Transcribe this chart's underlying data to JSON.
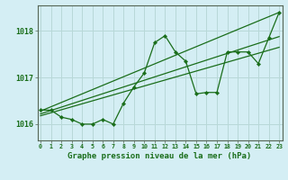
{
  "background_color": "#d4eef4",
  "plot_bg_color": "#d4eef4",
  "grid_color": "#b8d8d8",
  "line_color": "#1a6e1a",
  "title": "Graphe pression niveau de la mer (hPa)",
  "xlabel_ticks": [
    0,
    1,
    2,
    3,
    4,
    5,
    6,
    7,
    8,
    9,
    10,
    11,
    12,
    13,
    14,
    15,
    16,
    17,
    18,
    19,
    20,
    21,
    22,
    23
  ],
  "yticks": [
    1016,
    1017,
    1018
  ],
  "ylim": [
    1015.65,
    1018.55
  ],
  "xlim": [
    -0.3,
    23.3
  ],
  "main_x": [
    0,
    1,
    2,
    3,
    4,
    5,
    6,
    7,
    8,
    9,
    10,
    11,
    12,
    13,
    14,
    15,
    16,
    17,
    18,
    19,
    20,
    21,
    22,
    23
  ],
  "main_y": [
    1016.3,
    1016.3,
    1016.15,
    1016.1,
    1016.0,
    1016.0,
    1016.1,
    1016.0,
    1016.45,
    1016.8,
    1017.1,
    1017.75,
    1017.9,
    1017.55,
    1017.35,
    1016.65,
    1016.68,
    1016.68,
    1017.55,
    1017.55,
    1017.55,
    1017.3,
    1017.85,
    1018.4
  ],
  "trend1_x": [
    0,
    23
  ],
  "trend1_y": [
    1016.28,
    1018.4
  ],
  "trend2_x": [
    0,
    23
  ],
  "trend2_y": [
    1016.22,
    1017.88
  ],
  "trend3_x": [
    0,
    23
  ],
  "trend3_y": [
    1016.18,
    1017.65
  ]
}
